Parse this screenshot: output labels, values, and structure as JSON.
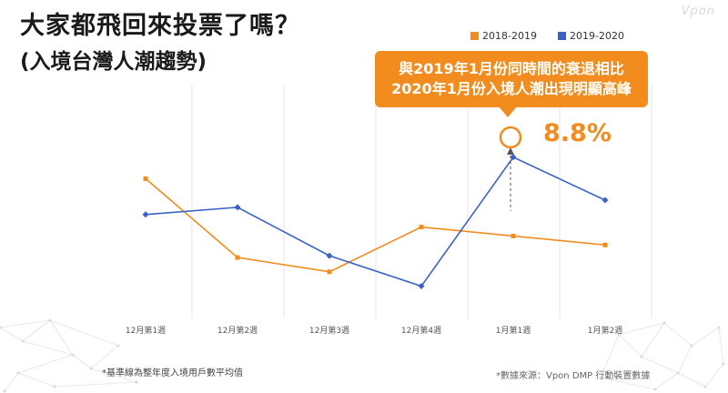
{
  "title": "大家都飛回來投票了嗎？",
  "subtitle": "(入境台灣人潮趨勢)",
  "logo": "Vpon",
  "callout": {
    "line1": "與2019年1月份同時間的衰退相比",
    "line2": "2020年1月份入境人潮出現明顯高峰",
    "percent": "8.8%"
  },
  "footnotes": {
    "baseline": "*基準線為整年度入境用戶數平均值",
    "source": "*數據來源：Vpon DMP 行動裝置數據"
  },
  "colors": {
    "orange": "#f28c1e",
    "blue": "#3a62c4",
    "grid": "#e6e6e6"
  },
  "chart_data": {
    "type": "line",
    "categories": [
      "12月第1週",
      "12月第2週",
      "12月第3週",
      "12月第4週",
      "1月第1週",
      "1月第2週"
    ],
    "series": [
      {
        "name": "2018-2019",
        "color": "#f28c1e",
        "values": [
          98,
          54,
          46,
          71,
          66,
          61
        ]
      },
      {
        "name": "2019-2020",
        "color": "#3a62c4",
        "values": [
          78,
          82,
          55,
          38,
          110,
          86
        ]
      }
    ],
    "ylim": [
      20,
      150
    ],
    "legend": "top-right",
    "grid": "vertical"
  }
}
